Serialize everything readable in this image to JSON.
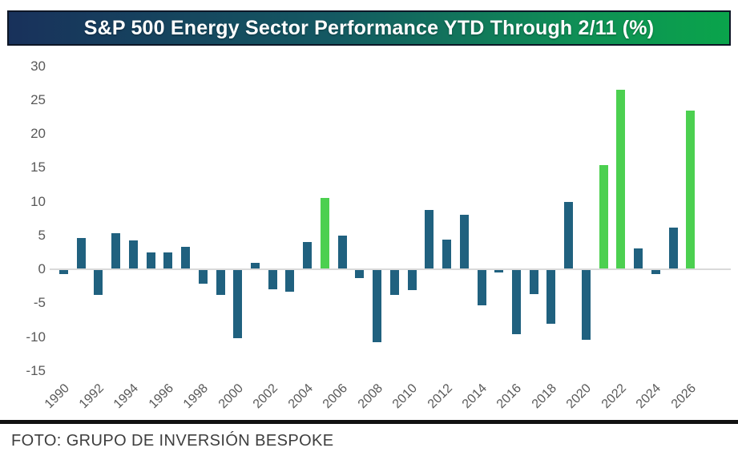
{
  "header": {
    "title": "S&P 500 Energy Sector Performance YTD Through 2/11 (%)"
  },
  "footer": {
    "credit": "FOTO: GRUPO DE INVERSIÓN BESPOKE"
  },
  "colors": {
    "header_gradient_left": "#18315b",
    "header_gradient_right": "#0aa44b",
    "bar_default": "#20617f",
    "bar_highlight": "#4cd050",
    "axis_line": "#d9d9d9",
    "tick_text": "#595959",
    "separator": "#121212",
    "footer_text": "#3e3e3e"
  },
  "chart_data": {
    "type": "bar",
    "title": "S&P 500 Energy Sector Performance YTD Through 2/11 (%)",
    "x": [
      1990,
      1991,
      1992,
      1993,
      1994,
      1995,
      1996,
      1997,
      1998,
      1999,
      2000,
      2001,
      2002,
      2003,
      2004,
      2005,
      2006,
      2007,
      2008,
      2009,
      2010,
      2011,
      2012,
      2013,
      2014,
      2015,
      2016,
      2017,
      2018,
      2019,
      2020,
      2021,
      2022,
      2023,
      2024,
      2025,
      2026
    ],
    "values": [
      -0.6,
      4.6,
      -3.7,
      5.3,
      4.3,
      2.5,
      2.5,
      3.3,
      -2.0,
      -3.7,
      -10.0,
      0.9,
      -2.8,
      -3.2,
      4.0,
      10.5,
      5.0,
      -1.2,
      -10.7,
      -3.7,
      -3.0,
      8.7,
      4.4,
      8.0,
      -5.2,
      -0.4,
      -9.5,
      -3.6,
      -7.9,
      9.9,
      -10.3,
      15.4,
      26.5,
      3.1,
      -0.6,
      6.2,
      23.4
    ],
    "highlight_years": [
      2005,
      2021,
      2022,
      2026
    ],
    "yticks": [
      30,
      25,
      20,
      15,
      10,
      5,
      0,
      -5,
      -10,
      -15
    ],
    "xticks": [
      1990,
      1992,
      1994,
      1996,
      1998,
      2000,
      2002,
      2004,
      2006,
      2008,
      2010,
      2012,
      2014,
      2016,
      2018,
      2020,
      2022,
      2024,
      2026
    ],
    "ylim": [
      -15,
      30
    ],
    "xlabel": "",
    "ylabel": "",
    "grid": false,
    "legend": null
  }
}
